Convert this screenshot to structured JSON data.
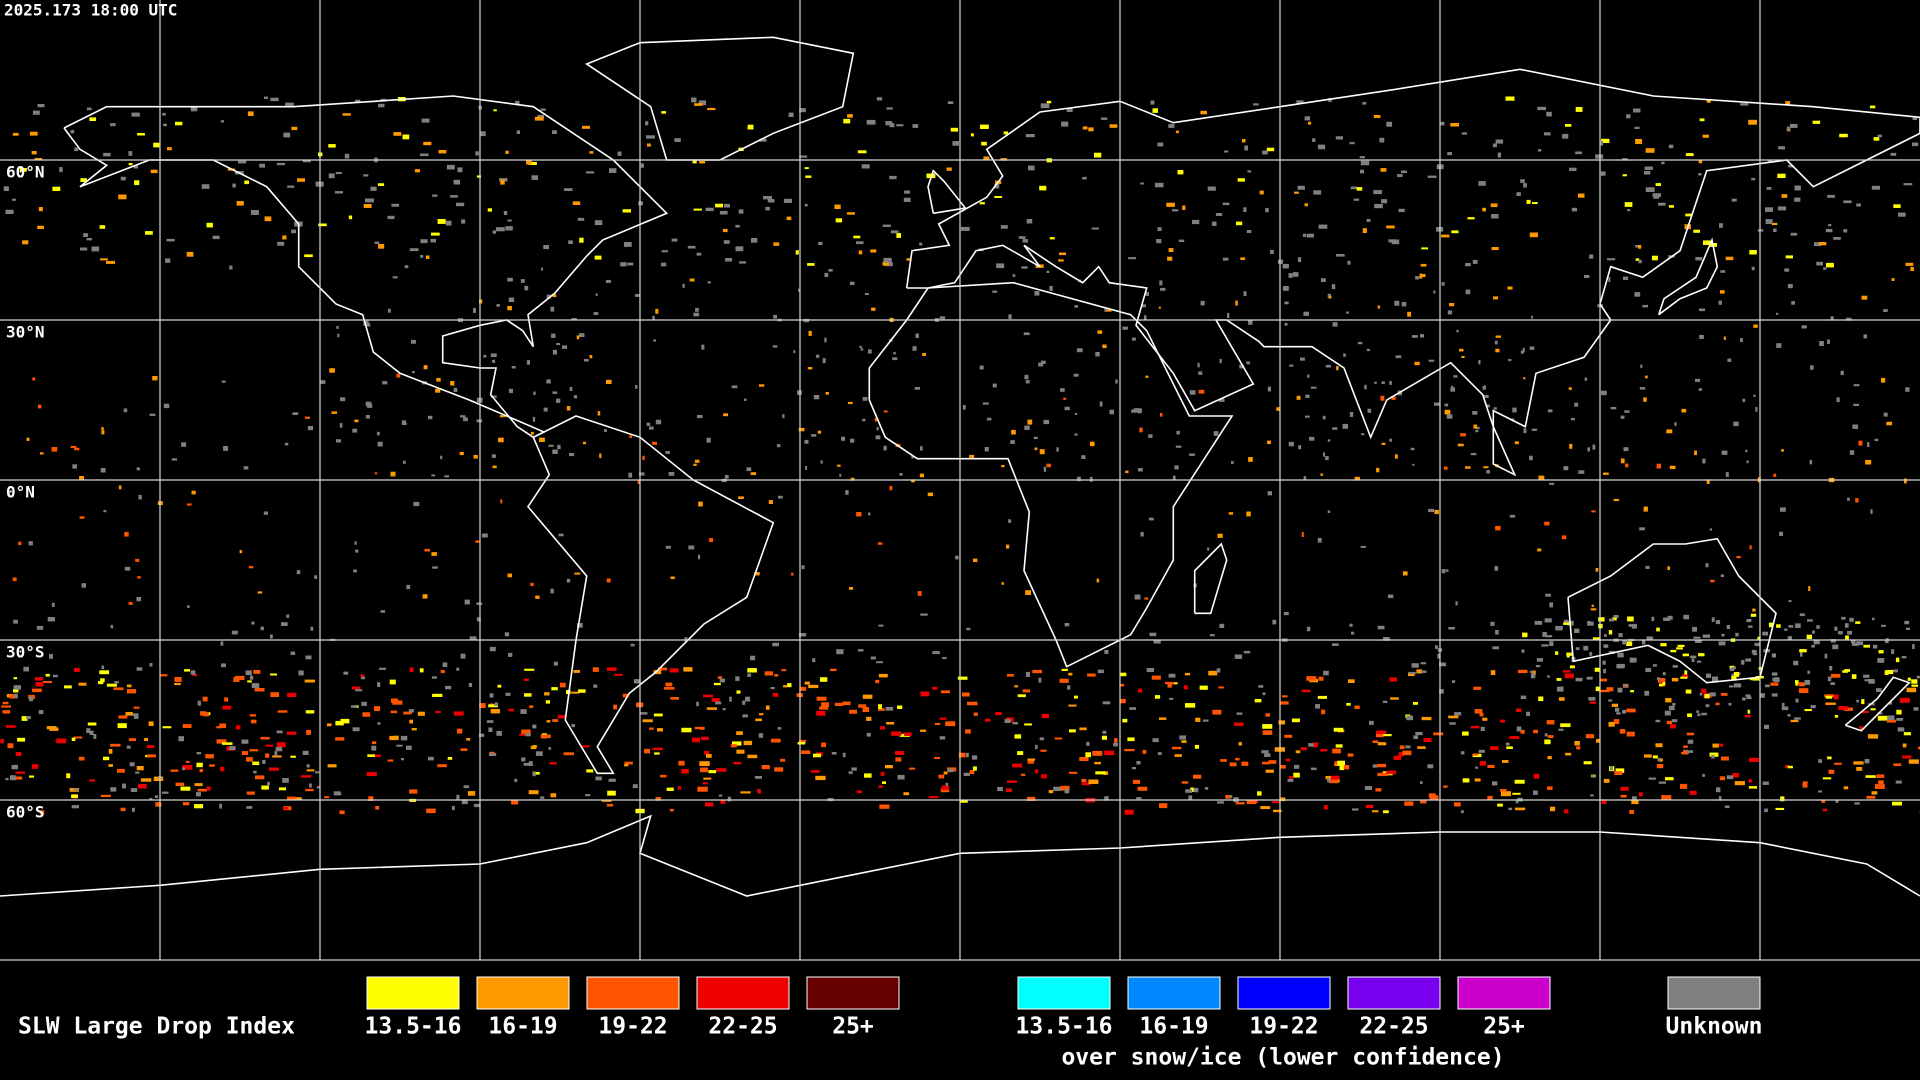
{
  "header": {
    "timestamp": "2025.173 18:00 UTC"
  },
  "map": {
    "latitude_labels": [
      "60°N",
      "30°N",
      "0°N",
      "30°S",
      "60°S"
    ]
  },
  "legend": {
    "title": "SLW Large Drop Index",
    "groups": [
      {
        "items": [
          {
            "label": "13.5-16",
            "color": "#ffff00"
          },
          {
            "label": "16-19",
            "color": "#ff9900"
          },
          {
            "label": "19-22",
            "color": "#ff5500"
          },
          {
            "label": "22-25",
            "color": "#ee0000"
          },
          {
            "label": "25+",
            "color": "#660000"
          }
        ]
      },
      {
        "items": [
          {
            "label": "13.5-16",
            "color": "#00ffff"
          },
          {
            "label": "16-19",
            "color": "#0088ff"
          },
          {
            "label": "19-22",
            "color": "#0000ff"
          },
          {
            "label": "22-25",
            "color": "#7700ee"
          },
          {
            "label": "25+",
            "color": "#cc00cc"
          }
        ],
        "caption": "over snow/ice (lower confidence)"
      }
    ],
    "unknown": {
      "label": "Unknown",
      "color": "#808080"
    }
  }
}
